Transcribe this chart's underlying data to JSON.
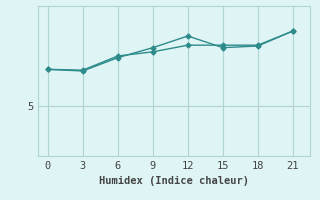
{
  "title": "",
  "xlabel": "Humidex (Indice chaleur)",
  "x": [
    0,
    3,
    6,
    9,
    12,
    15,
    18,
    21
  ],
  "line1_y": [
    7.2,
    7.1,
    7.9,
    8.5,
    9.2,
    8.5,
    8.6,
    9.5
  ],
  "line2_y": [
    7.2,
    7.15,
    8.0,
    8.25,
    8.65,
    8.65,
    8.65,
    9.5
  ],
  "line_color": "#2e8b8b",
  "marker": "D",
  "marker_size": 2.5,
  "background_color": "#dff4f4",
  "grid_color": "#aed4d4",
  "tick_color": "#444444",
  "ytick_label": "5",
  "ytick_value": 5,
  "ylim": [
    2.0,
    11.0
  ],
  "xlim": [
    -0.8,
    22.5
  ],
  "xticks": [
    0,
    3,
    6,
    9,
    12,
    15,
    18,
    21
  ],
  "label_fontsize": 7.5,
  "tick_fontsize": 7.5,
  "line_width": 1.0
}
